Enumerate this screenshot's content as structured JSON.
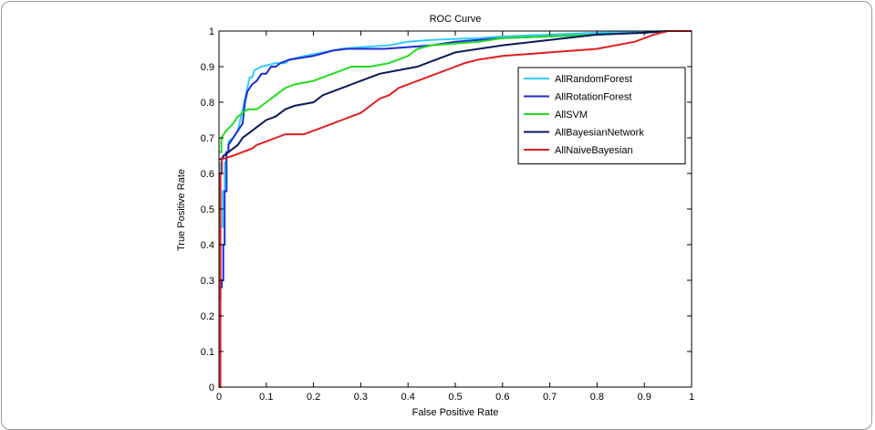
{
  "chart_data": {
    "type": "line",
    "title": "ROC Curve",
    "xlabel": "False Positive Rate",
    "ylabel": "True Positive Rate",
    "xlim": [
      0,
      1
    ],
    "ylim": [
      0,
      1
    ],
    "xticks": [
      "0",
      "0.1",
      "0.2",
      "0.3",
      "0.4",
      "0.5",
      "0.6",
      "0.7",
      "0.8",
      "0.9",
      "1"
    ],
    "yticks": [
      "0",
      "0.1",
      "0.2",
      "0.3",
      "0.4",
      "0.5",
      "0.6",
      "0.7",
      "0.8",
      "0.9",
      "1"
    ],
    "grid": false,
    "legend_position": "top-right",
    "series": [
      {
        "name": "AllRandomForest",
        "color": "#33ccff",
        "points": [
          [
            0,
            0.63
          ],
          [
            0.003,
            0.63
          ],
          [
            0.003,
            0.45
          ],
          [
            0.008,
            0.45
          ],
          [
            0.008,
            0.55
          ],
          [
            0.012,
            0.55
          ],
          [
            0.012,
            0.63
          ],
          [
            0.015,
            0.63
          ],
          [
            0.015,
            0.66
          ],
          [
            0.02,
            0.66
          ],
          [
            0.02,
            0.69
          ],
          [
            0.03,
            0.7
          ],
          [
            0.04,
            0.72
          ],
          [
            0.05,
            0.78
          ],
          [
            0.06,
            0.84
          ],
          [
            0.065,
            0.87
          ],
          [
            0.07,
            0.87
          ],
          [
            0.075,
            0.89
          ],
          [
            0.09,
            0.9
          ],
          [
            0.12,
            0.91
          ],
          [
            0.14,
            0.91
          ],
          [
            0.15,
            0.92
          ],
          [
            0.18,
            0.93
          ],
          [
            0.22,
            0.94
          ],
          [
            0.26,
            0.95
          ],
          [
            0.3,
            0.955
          ],
          [
            0.36,
            0.96
          ],
          [
            0.4,
            0.97
          ],
          [
            0.45,
            0.975
          ],
          [
            0.5,
            0.978
          ],
          [
            0.55,
            0.98
          ],
          [
            0.6,
            0.985
          ],
          [
            0.7,
            0.99
          ],
          [
            0.8,
            0.995
          ],
          [
            0.9,
            0.998
          ],
          [
            0.95,
            1.0
          ],
          [
            1.0,
            1.0
          ]
        ]
      },
      {
        "name": "AllRotationForest",
        "color": "#1f2bd6",
        "points": [
          [
            0,
            0.25
          ],
          [
            0.003,
            0.25
          ],
          [
            0.003,
            0.28
          ],
          [
            0.006,
            0.28
          ],
          [
            0.006,
            0.3
          ],
          [
            0.009,
            0.3
          ],
          [
            0.009,
            0.4
          ],
          [
            0.012,
            0.4
          ],
          [
            0.012,
            0.55
          ],
          [
            0.016,
            0.55
          ],
          [
            0.016,
            0.66
          ],
          [
            0.02,
            0.66
          ],
          [
            0.02,
            0.68
          ],
          [
            0.03,
            0.7
          ],
          [
            0.04,
            0.72
          ],
          [
            0.05,
            0.74
          ],
          [
            0.055,
            0.8
          ],
          [
            0.06,
            0.83
          ],
          [
            0.07,
            0.85
          ],
          [
            0.08,
            0.86
          ],
          [
            0.09,
            0.88
          ],
          [
            0.1,
            0.88
          ],
          [
            0.11,
            0.9
          ],
          [
            0.12,
            0.9
          ],
          [
            0.13,
            0.91
          ],
          [
            0.15,
            0.92
          ],
          [
            0.2,
            0.93
          ],
          [
            0.24,
            0.945
          ],
          [
            0.27,
            0.95
          ],
          [
            0.35,
            0.95
          ],
          [
            0.4,
            0.955
          ],
          [
            0.45,
            0.96
          ],
          [
            0.5,
            0.97
          ],
          [
            0.55,
            0.975
          ],
          [
            0.6,
            0.98
          ],
          [
            0.7,
            0.985
          ],
          [
            0.8,
            0.99
          ],
          [
            0.9,
            0.995
          ],
          [
            0.95,
            1.0
          ],
          [
            1.0,
            1.0
          ]
        ]
      },
      {
        "name": "AllSVM",
        "color": "#22dd22",
        "points": [
          [
            0,
            0.66
          ],
          [
            0.005,
            0.66
          ],
          [
            0.005,
            0.7
          ],
          [
            0.015,
            0.72
          ],
          [
            0.03,
            0.74
          ],
          [
            0.04,
            0.76
          ],
          [
            0.05,
            0.77
          ],
          [
            0.06,
            0.78
          ],
          [
            0.08,
            0.78
          ],
          [
            0.1,
            0.8
          ],
          [
            0.12,
            0.82
          ],
          [
            0.14,
            0.84
          ],
          [
            0.16,
            0.85
          ],
          [
            0.2,
            0.86
          ],
          [
            0.22,
            0.87
          ],
          [
            0.24,
            0.88
          ],
          [
            0.26,
            0.89
          ],
          [
            0.28,
            0.9
          ],
          [
            0.32,
            0.9
          ],
          [
            0.36,
            0.91
          ],
          [
            0.38,
            0.92
          ],
          [
            0.4,
            0.93
          ],
          [
            0.42,
            0.95
          ],
          [
            0.45,
            0.96
          ],
          [
            0.5,
            0.965
          ],
          [
            0.55,
            0.97
          ],
          [
            0.6,
            0.98
          ],
          [
            0.7,
            0.985
          ],
          [
            0.8,
            0.99
          ],
          [
            0.9,
            0.995
          ],
          [
            0.95,
            1.0
          ],
          [
            1.0,
            1.0
          ]
        ]
      },
      {
        "name": "AllBayesianNetwork",
        "color": "#0a1a5c",
        "points": [
          [
            0,
            0.64
          ],
          [
            0.005,
            0.64
          ],
          [
            0.01,
            0.65
          ],
          [
            0.02,
            0.66
          ],
          [
            0.03,
            0.67
          ],
          [
            0.04,
            0.68
          ],
          [
            0.05,
            0.7
          ],
          [
            0.06,
            0.71
          ],
          [
            0.08,
            0.73
          ],
          [
            0.1,
            0.75
          ],
          [
            0.12,
            0.76
          ],
          [
            0.14,
            0.78
          ],
          [
            0.16,
            0.79
          ],
          [
            0.2,
            0.8
          ],
          [
            0.22,
            0.82
          ],
          [
            0.24,
            0.83
          ],
          [
            0.26,
            0.84
          ],
          [
            0.28,
            0.85
          ],
          [
            0.3,
            0.86
          ],
          [
            0.32,
            0.87
          ],
          [
            0.34,
            0.88
          ],
          [
            0.38,
            0.89
          ],
          [
            0.42,
            0.9
          ],
          [
            0.44,
            0.91
          ],
          [
            0.46,
            0.92
          ],
          [
            0.48,
            0.93
          ],
          [
            0.5,
            0.94
          ],
          [
            0.55,
            0.95
          ],
          [
            0.6,
            0.96
          ],
          [
            0.7,
            0.975
          ],
          [
            0.8,
            0.99
          ],
          [
            0.9,
            0.995
          ],
          [
            0.95,
            1.0
          ],
          [
            1.0,
            1.0
          ]
        ]
      },
      {
        "name": "AllNaiveBayesian",
        "color": "#e02020",
        "points": [
          [
            0,
            0
          ],
          [
            0.003,
            0
          ],
          [
            0.003,
            0.6
          ],
          [
            0.006,
            0.6
          ],
          [
            0.006,
            0.64
          ],
          [
            0.03,
            0.65
          ],
          [
            0.05,
            0.66
          ],
          [
            0.07,
            0.67
          ],
          [
            0.08,
            0.68
          ],
          [
            0.1,
            0.69
          ],
          [
            0.12,
            0.7
          ],
          [
            0.14,
            0.71
          ],
          [
            0.18,
            0.71
          ],
          [
            0.2,
            0.72
          ],
          [
            0.22,
            0.73
          ],
          [
            0.24,
            0.74
          ],
          [
            0.26,
            0.75
          ],
          [
            0.28,
            0.76
          ],
          [
            0.3,
            0.77
          ],
          [
            0.31,
            0.78
          ],
          [
            0.32,
            0.79
          ],
          [
            0.33,
            0.8
          ],
          [
            0.34,
            0.81
          ],
          [
            0.36,
            0.82
          ],
          [
            0.37,
            0.83
          ],
          [
            0.38,
            0.84
          ],
          [
            0.4,
            0.85
          ],
          [
            0.42,
            0.86
          ],
          [
            0.44,
            0.87
          ],
          [
            0.46,
            0.88
          ],
          [
            0.5,
            0.9
          ],
          [
            0.52,
            0.91
          ],
          [
            0.55,
            0.92
          ],
          [
            0.6,
            0.93
          ],
          [
            0.7,
            0.94
          ],
          [
            0.8,
            0.95
          ],
          [
            0.88,
            0.97
          ],
          [
            0.92,
            0.99
          ],
          [
            0.95,
            1.0
          ],
          [
            1.0,
            1.0
          ]
        ]
      }
    ]
  }
}
